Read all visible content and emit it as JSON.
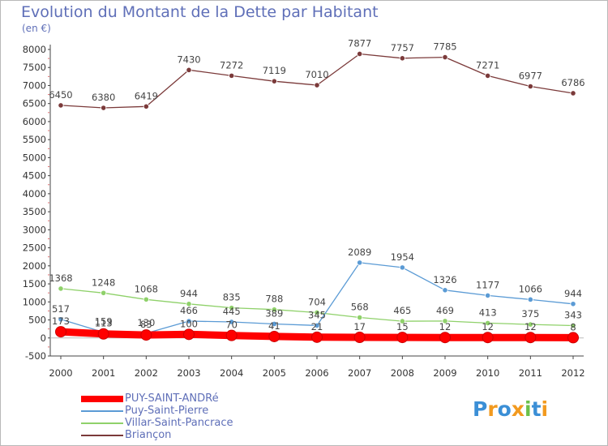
{
  "title": "Evolution du Montant de la Dette par Habitant",
  "unit": "(en €)",
  "brand": "Proxiti",
  "chart_data": {
    "type": "line",
    "x": [
      "2000",
      "2001",
      "2002",
      "2003",
      "2004",
      "2005",
      "2006",
      "2007",
      "2008",
      "2009",
      "2010",
      "2011",
      "2012"
    ],
    "ylim": [
      -500,
      8000
    ],
    "yticks": [
      -500,
      0,
      500,
      1000,
      1500,
      2000,
      2500,
      3000,
      3500,
      4000,
      4500,
      5000,
      5500,
      6000,
      6500,
      7000,
      7500,
      8000
    ],
    "grid": false,
    "legend_position": "bottom-left",
    "series": [
      {
        "name": "PUY-SAINT-ANDRé",
        "color": "#ff0000",
        "values": [
          173,
          113,
          83,
          100,
          70,
          41,
          21,
          17,
          15,
          12,
          12,
          12,
          8
        ],
        "labels": [
          "173",
          "113",
          "83",
          "100",
          "70",
          "41",
          "21",
          "17",
          "15",
          "12",
          "12",
          "12",
          "8"
        ]
      },
      {
        "name": "Puy-Saint-Pierre",
        "color": "#5b9bd5",
        "values": [
          517,
          159,
          130,
          466,
          445,
          389,
          345,
          2089,
          1954,
          1326,
          1177,
          1066,
          944
        ],
        "labels": [
          "517",
          "159",
          "130",
          "466",
          "445",
          "389",
          "345",
          "2089",
          "1954",
          "1326",
          "1177",
          "1066",
          "944"
        ]
      },
      {
        "name": "Villar-Saint-Pancrace",
        "color": "#8fd16a",
        "values": [
          1368,
          1248,
          1068,
          944,
          835,
          788,
          704,
          568,
          465,
          469,
          413,
          375,
          343
        ],
        "labels": [
          "1368",
          "1248",
          "1068",
          "944",
          "835",
          "788",
          "704",
          "568",
          "465",
          "469",
          "413",
          "375",
          "343"
        ]
      },
      {
        "name": "Briançon",
        "color": "#7b3a3a",
        "values": [
          6450,
          6380,
          6419,
          7430,
          7272,
          7119,
          7010,
          7877,
          7757,
          7785,
          7271,
          6977,
          6786
        ],
        "labels": [
          "6450",
          "6380",
          "6419",
          "7430",
          "7272",
          "7119",
          "7010",
          "7877",
          "7757",
          "7785",
          "7271",
          "6977",
          "6786"
        ]
      }
    ]
  },
  "legend": [
    {
      "label": "PUY-SAINT-ANDRé",
      "color": "#ff0000",
      "weight": "thick"
    },
    {
      "label": "Puy-Saint-Pierre",
      "color": "#5b9bd5",
      "weight": "thin"
    },
    {
      "label": "Villar-Saint-Pancrace",
      "color": "#8fd16a",
      "weight": "thin"
    },
    {
      "label": "Briançon",
      "color": "#7b3a3a",
      "weight": "thin"
    }
  ]
}
